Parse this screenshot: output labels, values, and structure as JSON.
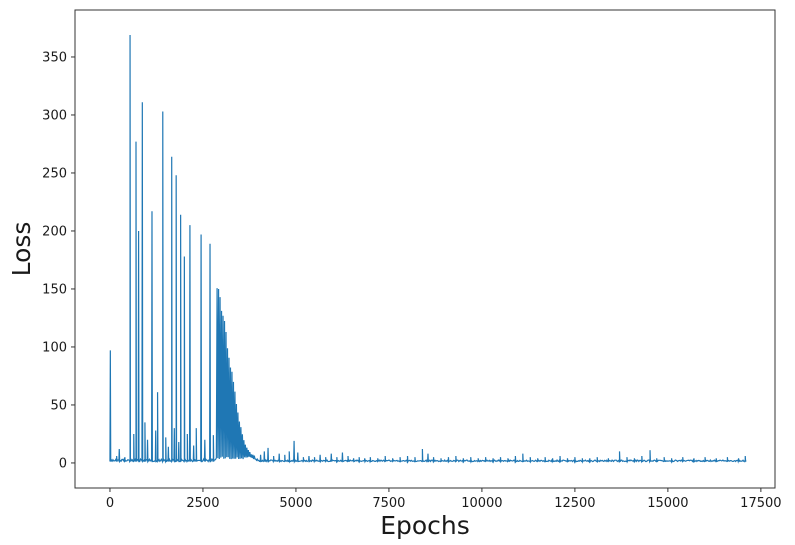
{
  "chart_data": {
    "type": "line",
    "title": "",
    "xlabel": "Epochs",
    "ylabel": "Loss",
    "line_color": "#1f77b4",
    "legend": "none",
    "grid": "off",
    "xlim": [
      -940,
      17880
    ],
    "ylim": [
      -21.6,
      390.5
    ],
    "x_ticks": [
      0,
      2500,
      5000,
      7500,
      10000,
      12500,
      15000,
      17500
    ],
    "y_ticks": [
      0,
      50,
      100,
      150,
      200,
      250,
      300,
      350
    ],
    "x_end": 17100,
    "sample_step": 20,
    "baseline": {
      "level": 1.2,
      "noise_early": 2.2,
      "noise_late": 1.3,
      "noise_split": 4000
    },
    "spikes": [
      [
        10,
        97
      ],
      [
        180,
        6
      ],
      [
        250,
        12
      ],
      [
        400,
        5
      ],
      [
        540,
        369
      ],
      [
        640,
        25
      ],
      [
        700,
        277
      ],
      [
        770,
        200
      ],
      [
        870,
        311
      ],
      [
        940,
        35
      ],
      [
        1010,
        20
      ],
      [
        1130,
        217
      ],
      [
        1230,
        28
      ],
      [
        1280,
        61
      ],
      [
        1420,
        303
      ],
      [
        1500,
        22
      ],
      [
        1570,
        14
      ],
      [
        1660,
        264
      ],
      [
        1730,
        30
      ],
      [
        1780,
        248
      ],
      [
        1850,
        18
      ],
      [
        1900,
        214
      ],
      [
        2000,
        178
      ],
      [
        2080,
        25
      ],
      [
        2150,
        205
      ],
      [
        2250,
        15
      ],
      [
        2320,
        30
      ],
      [
        2450,
        197
      ],
      [
        2550,
        20
      ],
      [
        2690,
        189
      ],
      [
        2780,
        24
      ],
      [
        4050,
        7
      ],
      [
        4150,
        10
      ],
      [
        4250,
        13
      ],
      [
        4400,
        6
      ],
      [
        4550,
        8
      ],
      [
        4700,
        7
      ],
      [
        4820,
        10
      ],
      [
        4950,
        19
      ],
      [
        5050,
        9
      ],
      [
        5200,
        5
      ],
      [
        5350,
        6
      ],
      [
        5500,
        5
      ],
      [
        5650,
        7
      ],
      [
        5800,
        5
      ],
      [
        5950,
        8
      ],
      [
        6100,
        5
      ],
      [
        6250,
        9
      ],
      [
        6400,
        6
      ],
      [
        6550,
        4
      ],
      [
        6700,
        5
      ],
      [
        6850,
        4
      ],
      [
        7000,
        5
      ],
      [
        7200,
        4
      ],
      [
        7400,
        6
      ],
      [
        7600,
        4
      ],
      [
        7800,
        5
      ],
      [
        8000,
        6
      ],
      [
        8200,
        5
      ],
      [
        8400,
        12
      ],
      [
        8550,
        8
      ],
      [
        8700,
        5
      ],
      [
        8900,
        4
      ],
      [
        9100,
        5
      ],
      [
        9300,
        6
      ],
      [
        9500,
        4
      ],
      [
        9700,
        5
      ],
      [
        9900,
        4
      ],
      [
        10100,
        5
      ],
      [
        10300,
        4
      ],
      [
        10500,
        5
      ],
      [
        10700,
        4
      ],
      [
        10900,
        6
      ],
      [
        11100,
        8
      ],
      [
        11300,
        5
      ],
      [
        11500,
        4
      ],
      [
        11700,
        5
      ],
      [
        11900,
        4
      ],
      [
        12100,
        6
      ],
      [
        12300,
        4
      ],
      [
        12500,
        5
      ],
      [
        12700,
        4
      ],
      [
        12900,
        4
      ],
      [
        13100,
        5
      ],
      [
        13400,
        4
      ],
      [
        13700,
        10
      ],
      [
        13900,
        5
      ],
      [
        14100,
        4
      ],
      [
        14300,
        6
      ],
      [
        14520,
        11
      ],
      [
        14700,
        4
      ],
      [
        14900,
        5
      ],
      [
        15100,
        4
      ],
      [
        15400,
        5
      ],
      [
        15700,
        4
      ],
      [
        16000,
        5
      ],
      [
        16300,
        4
      ],
      [
        16600,
        5
      ],
      [
        16900,
        4
      ],
      [
        17080,
        6
      ]
    ],
    "decay_hump": {
      "x_start": 2850,
      "x_end": 3900,
      "envelope": [
        [
          2850,
          163
        ],
        [
          2900,
          157
        ],
        [
          2950,
          150
        ],
        [
          3000,
          140
        ],
        [
          3060,
          128
        ],
        [
          3120,
          114
        ],
        [
          3180,
          100
        ],
        [
          3240,
          88
        ],
        [
          3300,
          76
        ],
        [
          3360,
          64
        ],
        [
          3420,
          50
        ],
        [
          3480,
          38
        ],
        [
          3540,
          28
        ],
        [
          3600,
          20
        ],
        [
          3660,
          15
        ],
        [
          3730,
          11
        ],
        [
          3800,
          8
        ],
        [
          3900,
          6
        ]
      ]
    }
  }
}
